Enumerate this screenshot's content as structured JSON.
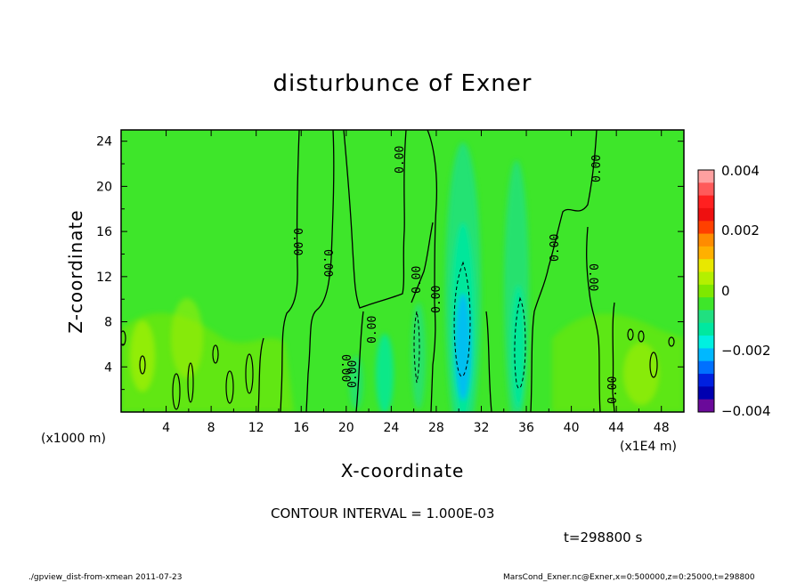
{
  "chart_data": {
    "type": "heatmap",
    "title": "disturbunce of Exner",
    "xlabel": "X-coordinate",
    "ylabel": "Z-coordinate",
    "x_unit_left": "(x1000 m)",
    "x_unit_right": "(x1E4 m)",
    "xlim": [
      0,
      50
    ],
    "ylim": [
      0,
      25
    ],
    "x_ticks": [
      "4",
      "8",
      "12",
      "16",
      "20",
      "24",
      "28",
      "32",
      "36",
      "40",
      "44",
      "48"
    ],
    "y_ticks": [
      "4",
      "8",
      "12",
      "16",
      "20",
      "24"
    ],
    "colorbar": {
      "range": [
        -0.004,
        0.004
      ],
      "labels": [
        "0.004",
        "0.002",
        "0",
        "−0.002",
        "−0.004"
      ],
      "colors": [
        "#ffa0a0",
        "#ff5a5a",
        "#ff2020",
        "#ee1010",
        "#ff4000",
        "#ff8c00",
        "#ffb000",
        "#e8e800",
        "#b4f000",
        "#7ee800",
        "#3ee62a",
        "#20e080",
        "#00e8a0",
        "#00f0e0",
        "#00b8ff",
        "#0070ff",
        "#0020e0",
        "#0000b0",
        "#6a0a9a"
      ]
    },
    "contour_interval": "CONTOUR INTERVAL = 1.000E-03",
    "contour_labels": [
      "0.00",
      "0.00",
      "0.00",
      "0.00",
      "0.00",
      "0.00",
      "0.00",
      "0.00",
      "0.00",
      "0.00",
      "0.00",
      "0.00",
      "0.00"
    ],
    "grid": false,
    "legend": "colorbar-right"
  },
  "time_label": "t=298800 s",
  "footer": {
    "left": "./gpview_dist-from-xmean   2011-07-23",
    "right": "MarsCond_Exner.nc@Exner,x=0:500000,z=0:25000,t=298800"
  }
}
